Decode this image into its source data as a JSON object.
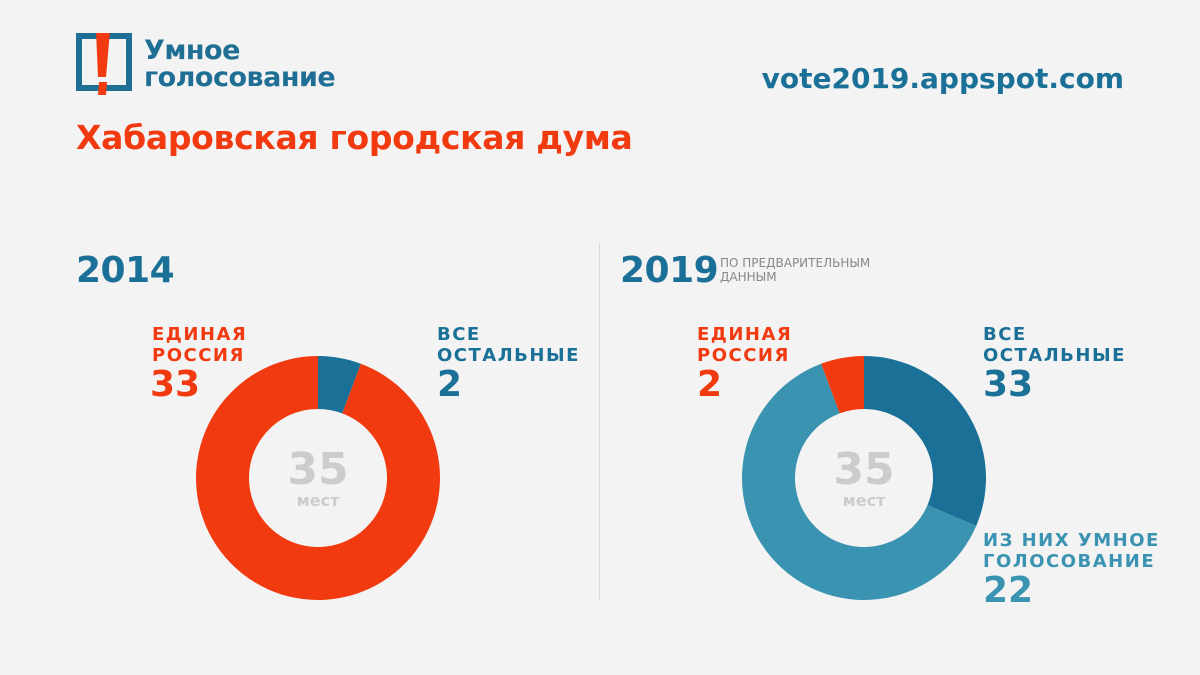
{
  "header": {
    "logo_line1": "Умное",
    "logo_line2": "голосование",
    "url": "vote2019.appspot.com",
    "title": "Хабаровская городская дума"
  },
  "colors": {
    "red": "#f23a10",
    "blue": "#1a7096",
    "light_blue": "#3a93b1",
    "center_text": "#cccccc"
  },
  "panels": [
    {
      "year": "2014",
      "note": "",
      "er_label_1": "ЕДИНАЯ",
      "er_label_2": "РОССИЯ",
      "er_value": "33",
      "others_label_1": "ВСЕ",
      "others_label_2": "ОСТАЛЬНЫЕ",
      "others_value": "2"
    },
    {
      "year": "2019",
      "note_line1": "ПО ПРЕДВАРИТЕЛЬНЫМ",
      "note_line2": "ДАННЫМ",
      "er_label_1": "ЕДИНАЯ",
      "er_label_2": "РОССИЯ",
      "er_value": "2",
      "others_label_1": "ВСЕ",
      "others_label_2": "ОСТАЛЬНЫЕ",
      "others_value": "33",
      "sv_label_1": "ИЗ НИХ УМНОЕ",
      "sv_label_2": "ГОЛОСОВАНИЕ",
      "sv_value": "22"
    }
  ],
  "chart_data": [
    {
      "type": "pie",
      "donut": true,
      "title": "2014",
      "center_value": "35",
      "center_unit": "мест",
      "slices": [
        {
          "label": "Все остальные",
          "value": 2,
          "color": "#1a7096"
        },
        {
          "label": "Единая Россия",
          "value": 33,
          "color": "#f23a10"
        }
      ]
    },
    {
      "type": "pie",
      "donut": true,
      "title": "2019",
      "center_value": "35",
      "center_unit": "мест",
      "slices": [
        {
          "label": "Все остальные",
          "value": 11,
          "color": "#1a7096"
        },
        {
          "label": "Из них умное голосование",
          "value": 22,
          "color": "#3a93b1"
        },
        {
          "label": "Единая Россия",
          "value": 2,
          "color": "#f23a10"
        }
      ]
    }
  ]
}
